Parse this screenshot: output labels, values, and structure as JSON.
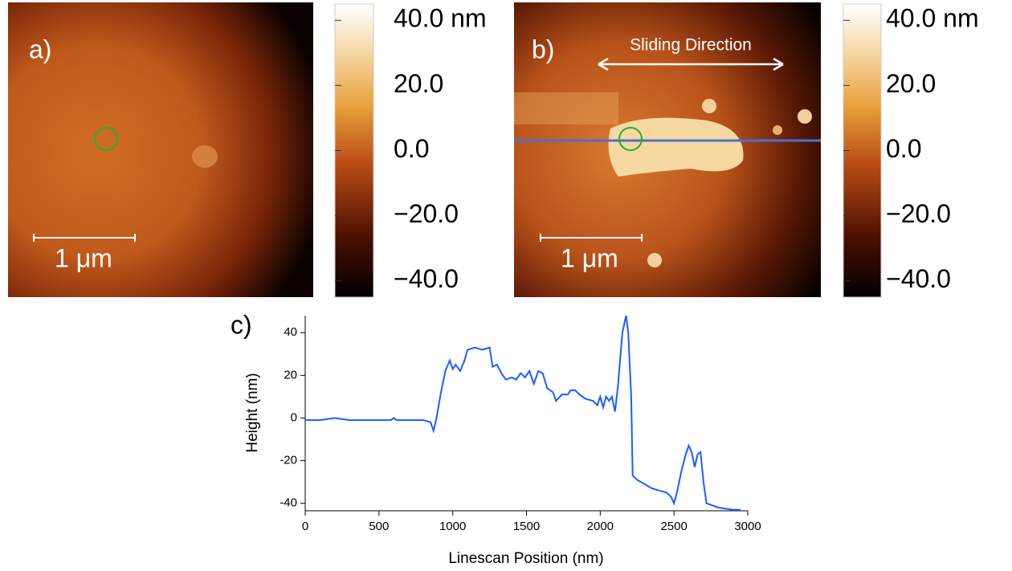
{
  "chart_data": [
    {
      "type": "image",
      "label": "a)",
      "scale_bar": "1 μm",
      "zlim": [
        -45,
        45
      ],
      "zticks": [
        {
          "value": 40,
          "label": "40.0 nm"
        },
        {
          "value": 20,
          "label": "20.0"
        },
        {
          "value": 0,
          "label": "0.0"
        },
        {
          "value": -20,
          "label": "−20.0"
        },
        {
          "value": -40,
          "label": "−40.0"
        }
      ]
    },
    {
      "type": "image",
      "label": "b)",
      "scale_bar": "1 μm",
      "annotation": "Sliding Direction",
      "zlim": [
        -45,
        45
      ],
      "zticks": [
        {
          "value": 40,
          "label": "40.0 nm"
        },
        {
          "value": 20,
          "label": "20.0"
        },
        {
          "value": 0,
          "label": "0.0"
        },
        {
          "value": -20,
          "label": "−20.0"
        },
        {
          "value": -40,
          "label": "−40.0"
        }
      ]
    },
    {
      "type": "line",
      "label": "c)",
      "x_label": "Linescan Position (nm)",
      "y_label": "Height (nm)",
      "color": "#1f5cff",
      "xlim": [
        0,
        3000
      ],
      "xticks": [
        0,
        500,
        1000,
        1500,
        2000,
        2500,
        3000
      ],
      "ylim": [
        -43.5,
        48
      ],
      "yticks": [
        -40,
        -20,
        0,
        20,
        40
      ],
      "x": [
        0,
        100,
        200,
        300,
        400,
        500,
        580,
        600,
        620,
        700,
        800,
        850,
        870,
        890,
        920,
        950,
        980,
        1000,
        1020,
        1050,
        1080,
        1100,
        1150,
        1200,
        1250,
        1270,
        1300,
        1330,
        1360,
        1400,
        1430,
        1460,
        1490,
        1520,
        1550,
        1580,
        1610,
        1640,
        1680,
        1700,
        1740,
        1780,
        1800,
        1830,
        1860,
        1900,
        1950,
        1980,
        2000,
        2020,
        2040,
        2060,
        2080,
        2100,
        2120,
        2150,
        2175,
        2190,
        2210,
        2220,
        2250,
        2300,
        2350,
        2400,
        2450,
        2480,
        2500,
        2520,
        2550,
        2580,
        2600,
        2620,
        2640,
        2660,
        2680,
        2700,
        2720,
        2800,
        2900,
        2950
      ],
      "values": [
        -1,
        -1,
        0,
        -1,
        -1,
        -1,
        -1,
        0,
        -1,
        -1,
        -1,
        -2,
        -6,
        0,
        12,
        22,
        27,
        23,
        25,
        22,
        27,
        32,
        33,
        32,
        33,
        24,
        25,
        21,
        18,
        19,
        18,
        21,
        19,
        22,
        16,
        22,
        21,
        14,
        12,
        8,
        11,
        11,
        13,
        13,
        11,
        9,
        8,
        6,
        10,
        5,
        10,
        8,
        10,
        3,
        15,
        40,
        48,
        40,
        10,
        -27,
        -29,
        -31,
        -33,
        -34,
        -35,
        -37,
        -40,
        -35,
        -25,
        -17,
        -13,
        -16,
        -23,
        -17,
        -16,
        -30,
        -40,
        -42,
        -43,
        -43
      ]
    }
  ]
}
